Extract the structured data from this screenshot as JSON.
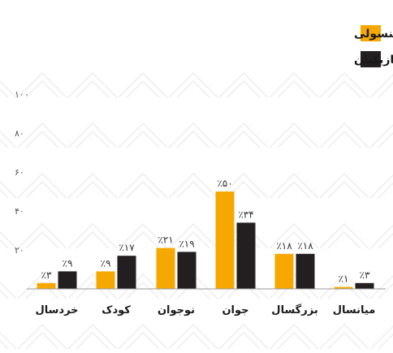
{
  "chart_data": {
    "type": "bar",
    "categories": [
      "خردسال",
      "کودک",
      "نوجوان",
      "جوان",
      "بزرگسال",
      "میانسال"
    ],
    "series": [
      {
        "name": "بازیکنان کنسولی",
        "color": "#F7A800",
        "values": [
          3,
          9,
          21,
          50,
          18,
          1
        ],
        "labels": [
          "٪۳",
          "٪۹",
          "٪۲۱",
          "٪۵۰",
          "٪۱۸",
          "٪۱"
        ]
      },
      {
        "name": "کل بازیکنان",
        "color": "#231F20",
        "values": [
          9,
          17,
          19,
          34,
          18,
          3
        ],
        "labels": [
          "٪۹",
          "٪۱۷",
          "٪۱۹",
          "٪۳۴",
          "٪۱۸",
          "٪۳"
        ]
      }
    ],
    "ylim": [
      0,
      100
    ],
    "yticks": [
      20,
      40,
      60,
      80,
      100
    ],
    "ytick_labels": [
      "۲۰",
      "۴۰",
      "۶۰",
      "۸۰",
      "۱۰۰"
    ],
    "legend_position": "top-right",
    "grid": false,
    "baseline_color": "#999999"
  }
}
